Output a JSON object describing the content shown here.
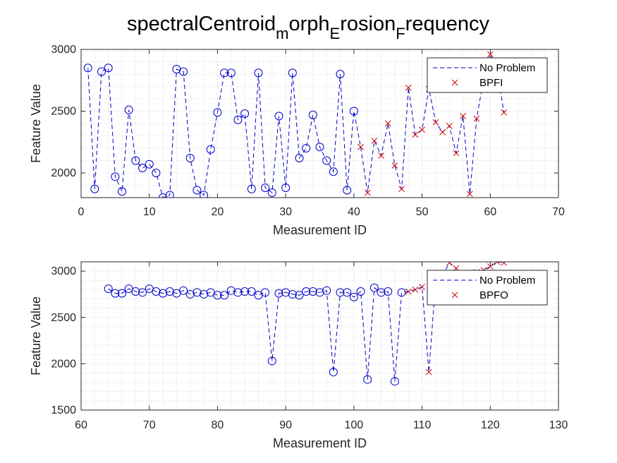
{
  "chart_data": {
    "title_parts": [
      {
        "text": "spectralCentroid",
        "sub": false
      },
      {
        "text": "m",
        "sub": true
      },
      {
        "text": "orph",
        "sub": false
      },
      {
        "text": "E",
        "sub": true
      },
      {
        "text": "rosion",
        "sub": false
      },
      {
        "text": "F",
        "sub": true
      },
      {
        "text": "requency",
        "sub": false
      }
    ],
    "colors": {
      "no_problem": "#0000cc",
      "fault": "#cc0000",
      "grid": "#d9d9d9",
      "axis": "#262626"
    },
    "subplots": [
      {
        "type": "line+scatter",
        "xlabel": "Measurement ID",
        "ylabel": "Feature Value",
        "xlim": [
          0,
          70
        ],
        "ylim": [
          1800,
          3000
        ],
        "xticks": [
          0,
          10,
          20,
          30,
          40,
          50,
          60,
          70
        ],
        "yticks": [
          2000,
          2500,
          3000
        ],
        "grid": "minor",
        "legend_position": "top-right",
        "legend": [
          "No Problem",
          "BPFI"
        ],
        "no_problem": {
          "x": [
            1,
            2,
            3,
            4,
            5,
            6,
            7,
            8,
            9,
            10,
            11,
            12,
            13,
            14,
            15,
            16,
            17,
            18,
            19,
            20,
            21,
            22,
            23,
            24,
            25,
            26,
            27,
            28,
            29,
            30,
            31,
            32,
            33,
            34,
            35,
            36,
            37,
            38,
            39,
            40
          ],
          "y": [
            2850,
            1870,
            2820,
            2850,
            1970,
            1850,
            2510,
            2100,
            2040,
            2070,
            2000,
            1800,
            1820,
            2840,
            2820,
            2120,
            1860,
            1820,
            2190,
            2490,
            2810,
            2810,
            2430,
            2480,
            1870,
            2810,
            1880,
            1840,
            2460,
            1880,
            2810,
            2120,
            2200,
            2470,
            2210,
            2100,
            2010,
            2800,
            1860,
            2500
          ]
        },
        "fault": {
          "name": "BPFI",
          "x": [
            41,
            42,
            43,
            44,
            45,
            46,
            47,
            48,
            49,
            50,
            51,
            52,
            53,
            54,
            55,
            56,
            57,
            58,
            59,
            60,
            61,
            62
          ],
          "y": [
            2210,
            1840,
            2260,
            2140,
            2400,
            2060,
            1870,
            2690,
            2310,
            2350,
            2680,
            2410,
            2330,
            2380,
            2160,
            2460,
            1830,
            2440,
            2750,
            2960,
            2830,
            2490
          ]
        }
      },
      {
        "type": "line+scatter",
        "xlabel": "Measurement ID",
        "ylabel": "Feature Value",
        "xlim": [
          60,
          130
        ],
        "ylim": [
          1500,
          3100
        ],
        "xticks": [
          60,
          70,
          80,
          90,
          100,
          110,
          120,
          130
        ],
        "yticks": [
          1500,
          2000,
          2500,
          3000
        ],
        "grid": "minor",
        "legend_position": "top-right",
        "legend": [
          "No Problem",
          "BPFO"
        ],
        "no_problem": {
          "x": [
            64,
            65,
            66,
            67,
            68,
            69,
            70,
            71,
            72,
            73,
            74,
            75,
            76,
            77,
            78,
            79,
            80,
            81,
            82,
            83,
            84,
            85,
            86,
            87,
            88,
            89,
            90,
            91,
            92,
            93,
            94,
            95,
            96,
            97,
            98,
            99,
            100,
            101,
            102,
            103,
            104,
            105,
            106,
            107
          ],
          "y": [
            2810,
            2760,
            2760,
            2810,
            2780,
            2770,
            2810,
            2780,
            2760,
            2780,
            2760,
            2790,
            2750,
            2770,
            2750,
            2770,
            2740,
            2740,
            2790,
            2770,
            2780,
            2780,
            2740,
            2770,
            2030,
            2760,
            2770,
            2750,
            2740,
            2780,
            2780,
            2770,
            2790,
            1910,
            2770,
            2770,
            2720,
            2780,
            1830,
            2820,
            2770,
            2780,
            1810,
            2770
          ]
        },
        "fault": {
          "name": "BPFO",
          "x": [
            108,
            109,
            110,
            111,
            112,
            113,
            114,
            115,
            116,
            117,
            118,
            119,
            120,
            121,
            122
          ],
          "y": [
            2780,
            2800,
            2830,
            1910,
            2900,
            2950,
            3090,
            3030,
            2960,
            2970,
            2990,
            3010,
            3050,
            3100,
            3090
          ]
        }
      }
    ]
  }
}
